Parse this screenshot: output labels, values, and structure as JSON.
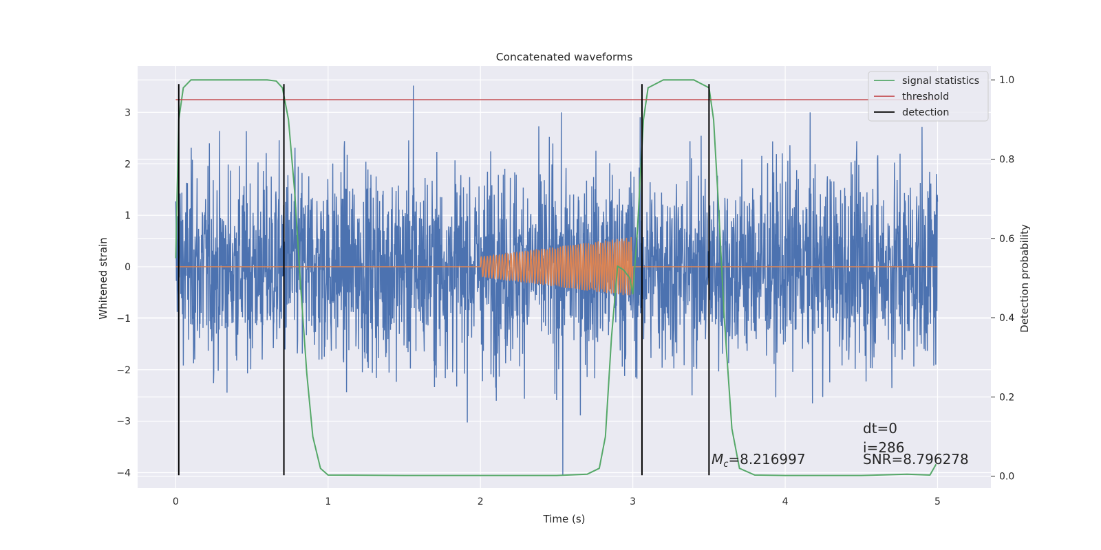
{
  "chart_data": {
    "type": "line",
    "title": "Concatenated waveforms",
    "xlabel": "Time (s)",
    "ylabel": "Whitened strain",
    "y2label": "Detection probability",
    "xlim": [
      -0.25,
      5.35
    ],
    "ylim": [
      -4.3,
      3.9
    ],
    "y2lim": [
      -0.03,
      1.035
    ],
    "xticks": [
      0,
      1,
      2,
      3,
      4,
      5
    ],
    "yticks": [
      -4,
      -3,
      -2,
      -1,
      0,
      1,
      2,
      3
    ],
    "y2ticks": [
      0.0,
      0.2,
      0.4,
      0.6,
      0.8,
      1.0
    ],
    "xtick_labels": [
      "0",
      "1",
      "2",
      "3",
      "4",
      "5"
    ],
    "ytick_labels": [
      "−4",
      "−3",
      "−2",
      "−1",
      "0",
      "1",
      "2",
      "3"
    ],
    "y2tick_labels": [
      "0.0",
      "0.2",
      "0.4",
      "0.6",
      "0.8",
      "1.0"
    ],
    "grid": true,
    "legend_position": "top-right",
    "colors": {
      "background": "#eaeaf2",
      "grid": "#ffffff",
      "strain": "#4c72b0",
      "template": "#dd8452",
      "signal_statistics": "#55a868",
      "threshold": "#c44e52",
      "detection": "#000000"
    },
    "series": [
      {
        "name": "signal statistics",
        "axis": "right",
        "x": [
          0.0,
          0.02,
          0.05,
          0.1,
          0.2,
          0.4,
          0.6,
          0.66,
          0.7,
          0.74,
          0.78,
          0.82,
          0.86,
          0.9,
          0.95,
          1.0,
          1.5,
          2.0,
          2.5,
          2.7,
          2.78,
          2.82,
          2.86,
          2.9,
          2.94,
          2.98,
          3.0,
          3.03,
          3.07,
          3.1,
          3.2,
          3.4,
          3.5,
          3.53,
          3.56,
          3.6,
          3.65,
          3.7,
          3.8,
          4.0,
          4.5,
          4.8,
          4.95,
          4.99
        ],
        "y": [
          0.55,
          0.9,
          0.98,
          1.0,
          1.0,
          1.0,
          1.0,
          0.997,
          0.98,
          0.9,
          0.72,
          0.48,
          0.26,
          0.1,
          0.02,
          0.003,
          0.002,
          0.002,
          0.002,
          0.005,
          0.02,
          0.1,
          0.35,
          0.53,
          0.52,
          0.5,
          0.46,
          0.62,
          0.9,
          0.98,
          1.0,
          1.0,
          0.98,
          0.9,
          0.7,
          0.4,
          0.12,
          0.02,
          0.003,
          0.002,
          0.002,
          0.005,
          0.003,
          0.03
        ]
      },
      {
        "name": "threshold",
        "axis": "right",
        "x": [
          0.0,
          5.0
        ],
        "y": [
          0.95,
          0.95
        ]
      },
      {
        "name": "detection",
        "axis": "left",
        "vlines_x": [
          0.02,
          0.71,
          3.06,
          3.5
        ],
        "vline_range": [
          -4.05,
          3.55
        ]
      },
      {
        "name": "",
        "axis": "left",
        "x_range": [
          0.0,
          5.0
        ],
        "typical_amplitude": 1.0,
        "peak_max": 3.52,
        "peak_min": -4.05
      },
      {
        "name": "",
        "axis": "left",
        "x_range": [
          0.0,
          5.0
        ],
        "y_constant": 0.0,
        "chirp_x_range": [
          2.0,
          3.0
        ],
        "chirp_start_amplitude": 0.2,
        "chirp_end_amplitude": 0.58,
        "chirp_cycles": 58
      }
    ],
    "annotations": {
      "dt": "dt=0",
      "i": "i=286",
      "mc_symbol": "M",
      "mc_sub": "c",
      "mc_value": "=8.216997",
      "snr": "SNR=8.796278"
    }
  }
}
